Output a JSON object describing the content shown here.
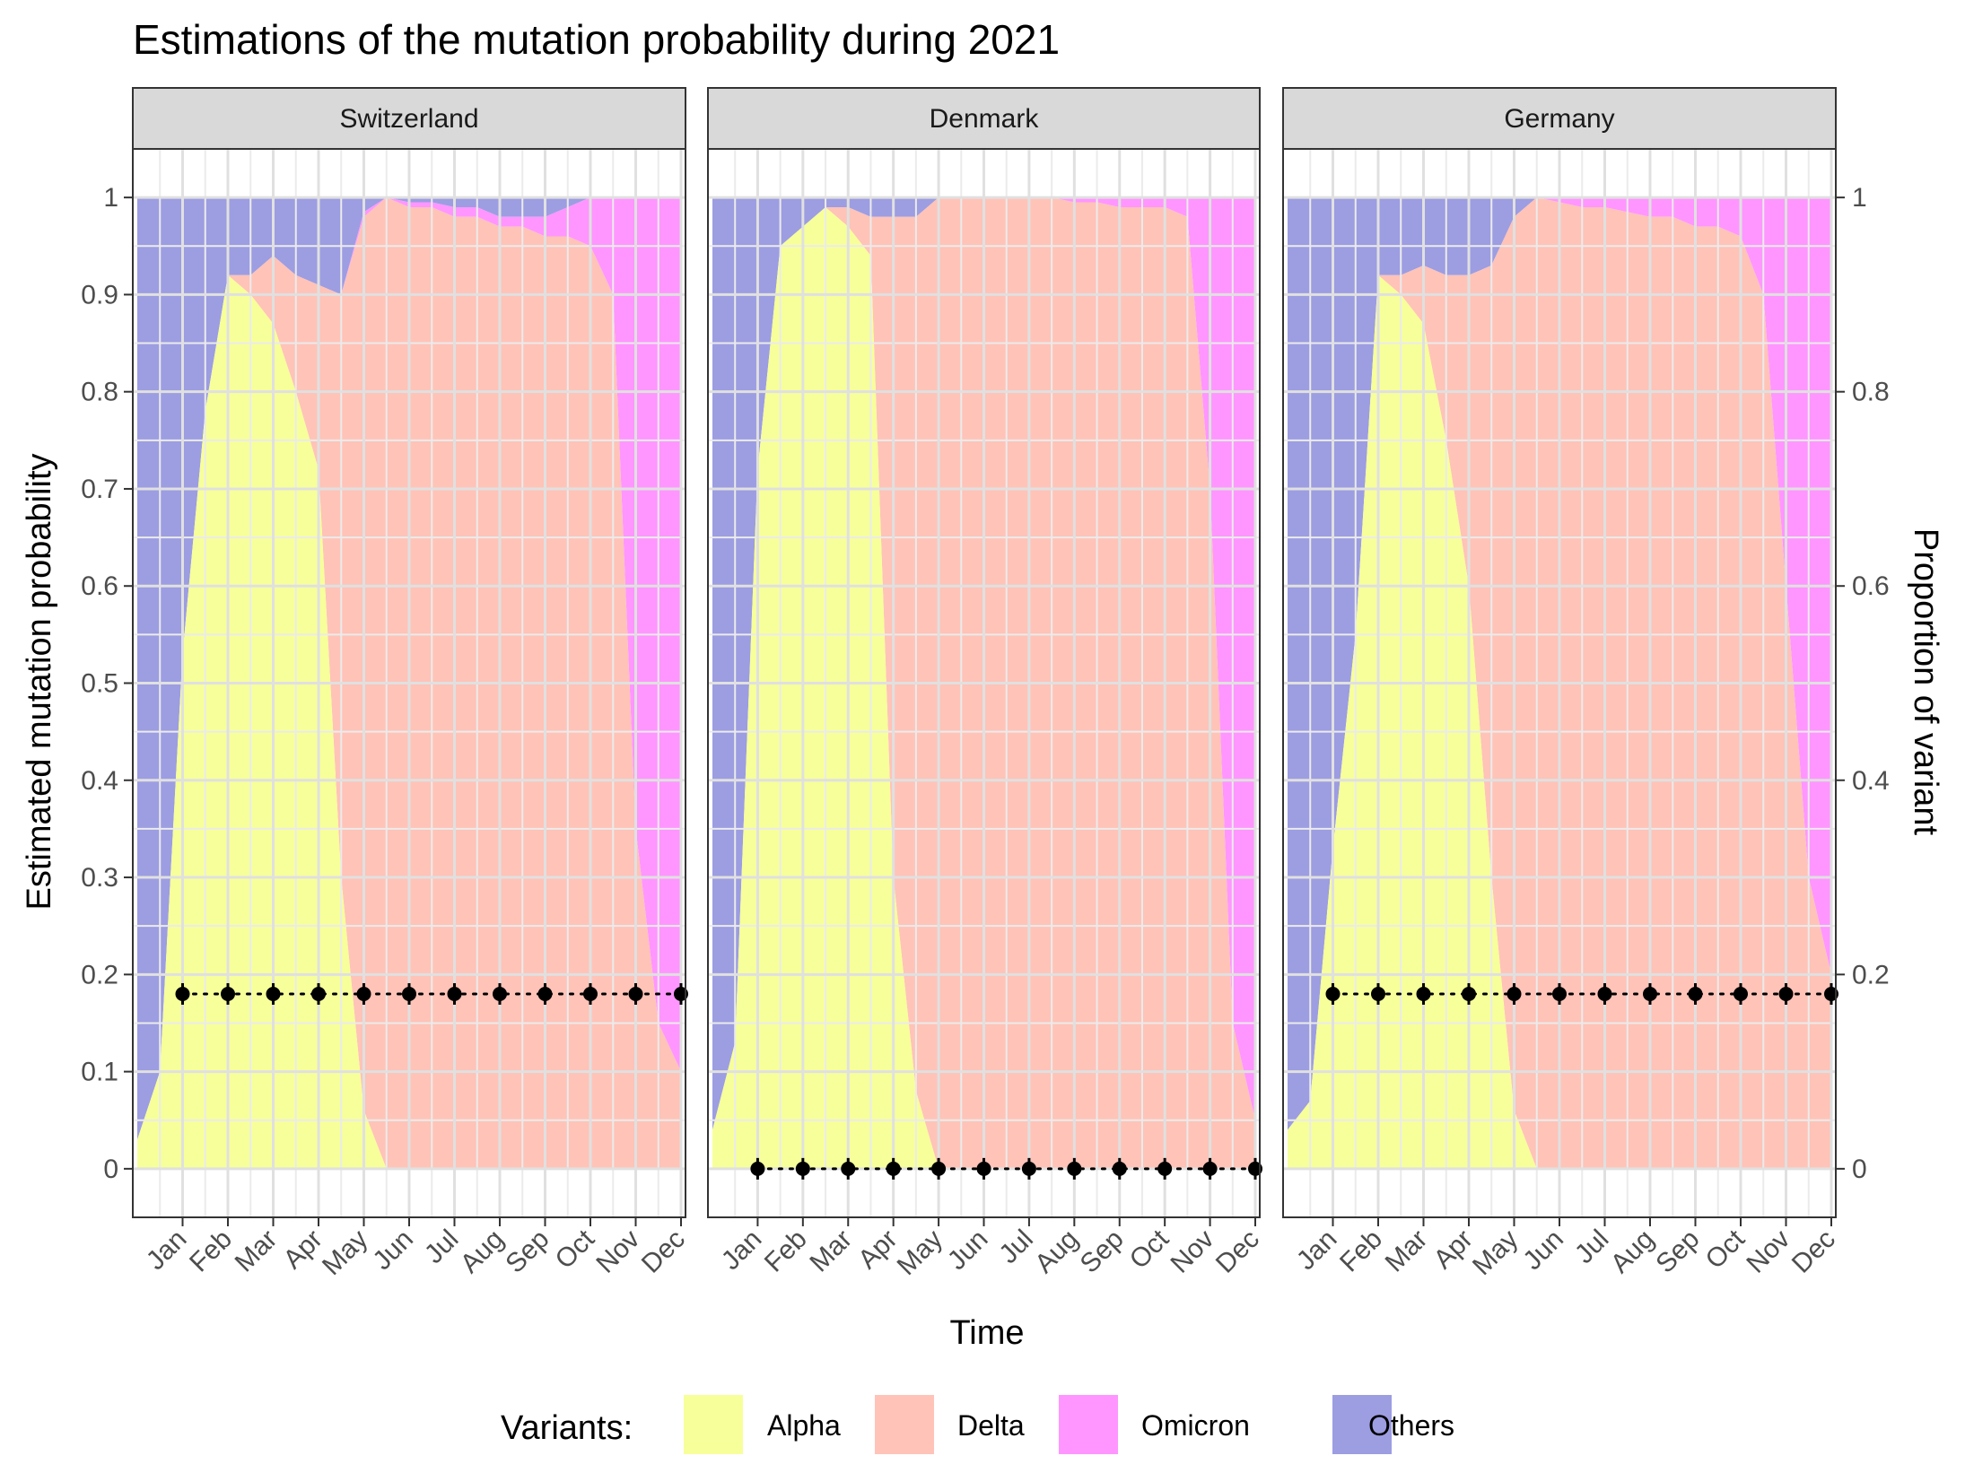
{
  "chart_data": {
    "type": "area",
    "title": "Estimations of the mutation probability during 2021",
    "xlabel": "Time",
    "ylabel": "Estimated mutation probability",
    "y2label": "Proportion of variant",
    "x_ticks": [
      "Jan",
      "Feb",
      "Mar",
      "Apr",
      "May",
      "Jun",
      "Jul",
      "Aug",
      "Sep",
      "Oct",
      "Nov",
      "Dec"
    ],
    "y_ticks": [
      "0",
      "0.1",
      "0.2",
      "0.3",
      "0.4",
      "0.5",
      "0.6",
      "0.7",
      "0.8",
      "0.9",
      "1"
    ],
    "y2_ticks": [
      "0",
      "0.2",
      "0.4",
      "0.6",
      "0.8",
      "1"
    ],
    "ylim": [
      -0.05,
      1.05
    ],
    "grid": true,
    "legend": {
      "title": "Variants:",
      "position": "bottom",
      "entries": [
        {
          "name": "Alpha",
          "color": "#F7FF9A"
        },
        {
          "name": "Delta",
          "color": "#FFC3B8"
        },
        {
          "name": "Omicron",
          "color": "#FF96FF"
        },
        {
          "name": "Others",
          "color": "#9D9DE2"
        }
      ]
    },
    "area_x": [
      0,
      0.5,
      1,
      1.5,
      2,
      2.5,
      3,
      3.5,
      4,
      4.5,
      5,
      5.5,
      6,
      6.5,
      7,
      7.5,
      8,
      8.5,
      9,
      9.5,
      10,
      10.5,
      11,
      11.5,
      12
    ],
    "panels": [
      {
        "name": "Switzerland",
        "alpha": [
          0.03,
          0.1,
          0.53,
          0.78,
          0.92,
          0.9,
          0.87,
          0.8,
          0.72,
          0.3,
          0.06,
          0,
          0,
          0,
          0,
          0,
          0,
          0,
          0,
          0,
          0,
          0,
          0,
          0,
          0
        ],
        "delta": [
          0,
          0,
          0,
          0,
          0,
          0.02,
          0.07,
          0.12,
          0.19,
          0.6,
          0.92,
          1.0,
          0.99,
          0.99,
          0.98,
          0.98,
          0.97,
          0.97,
          0.96,
          0.96,
          0.95,
          0.9,
          0.35,
          0.15,
          0.1
        ],
        "omicron": [
          0,
          0,
          0,
          0,
          0,
          0,
          0,
          0,
          0,
          0,
          0.005,
          0,
          0.005,
          0.005,
          0.01,
          0.01,
          0.01,
          0.01,
          0.02,
          0.03,
          0.05,
          0.1,
          0.65,
          0.85,
          0.9
        ],
        "mutation_prob": [
          0.18,
          0.18,
          0.18,
          0.18,
          0.18,
          0.18,
          0.18,
          0.18,
          0.18,
          0.18,
          0.18,
          0.18
        ]
      },
      {
        "name": "Denmark",
        "alpha": [
          0.04,
          0.13,
          0.72,
          0.95,
          0.97,
          0.99,
          0.97,
          0.94,
          0.3,
          0.08,
          0,
          0,
          0,
          0,
          0,
          0,
          0,
          0,
          0,
          0,
          0,
          0,
          0,
          0,
          0
        ],
        "delta": [
          0,
          0,
          0,
          0,
          0,
          0,
          0.02,
          0.04,
          0.68,
          0.9,
          1.0,
          1.0,
          1.0,
          1.0,
          1.0,
          1.0,
          0.995,
          0.995,
          0.99,
          0.99,
          0.99,
          0.98,
          0.7,
          0.15,
          0.05
        ],
        "omicron": [
          0,
          0,
          0,
          0,
          0,
          0,
          0,
          0,
          0,
          0,
          0,
          0,
          0,
          0,
          0,
          0,
          0.005,
          0.005,
          0.01,
          0.01,
          0.01,
          0.02,
          0.3,
          0.85,
          0.95
        ],
        "mutation_prob": [
          0,
          0,
          0,
          0,
          0,
          0,
          0,
          0,
          0,
          0,
          0,
          0
        ]
      },
      {
        "name": "Germany",
        "alpha": [
          0.04,
          0.07,
          0.33,
          0.55,
          0.92,
          0.9,
          0.87,
          0.75,
          0.6,
          0.3,
          0.06,
          0,
          0,
          0,
          0,
          0,
          0,
          0,
          0,
          0,
          0,
          0,
          0,
          0,
          0
        ],
        "delta": [
          0,
          0,
          0,
          0,
          0,
          0.02,
          0.06,
          0.17,
          0.32,
          0.63,
          0.92,
          1.0,
          0.995,
          0.99,
          0.99,
          0.985,
          0.98,
          0.98,
          0.97,
          0.97,
          0.96,
          0.9,
          0.6,
          0.3,
          0.2
        ],
        "omicron": [
          0,
          0,
          0,
          0,
          0,
          0,
          0,
          0,
          0,
          0,
          0,
          0,
          0.005,
          0.01,
          0.01,
          0.015,
          0.02,
          0.02,
          0.03,
          0.03,
          0.04,
          0.1,
          0.4,
          0.7,
          0.8
        ],
        "mutation_prob": [
          0.18,
          0.18,
          0.18,
          0.18,
          0.18,
          0.18,
          0.18,
          0.18,
          0.18,
          0.18,
          0.18,
          0.18
        ]
      }
    ]
  }
}
